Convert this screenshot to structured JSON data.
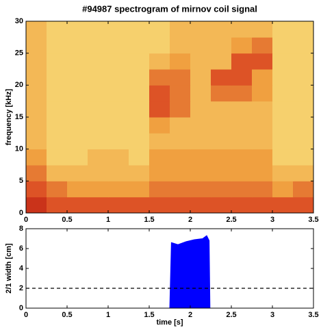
{
  "chart_data": [
    {
      "type": "heatmap",
      "title": "#94987 spectrogram of mirnov coil signal",
      "ylabel": "frequency [kHz]",
      "xlim": [
        0,
        3.5
      ],
      "ylim": [
        0,
        30
      ],
      "xticks": [
        0,
        0.5,
        1,
        1.5,
        2,
        2.5,
        3,
        3.5
      ],
      "yticks": [
        0,
        5,
        10,
        15,
        20,
        25,
        30
      ],
      "xbins": [
        0,
        0.25,
        0.5,
        0.75,
        1,
        1.25,
        1.5,
        1.75,
        2,
        2.25,
        2.5,
        2.75,
        3,
        3.25,
        3.5
      ],
      "ybins": [
        0,
        2.5,
        5,
        7.5,
        10,
        12.5,
        15,
        17.5,
        20,
        22.5,
        25,
        27.5,
        30
      ],
      "zlim": [
        0,
        10
      ],
      "colors": [
        "#fff8d8",
        "#f8dc78",
        "#f0a040",
        "#d84020",
        "#900000"
      ],
      "z": [
        [
          8,
          7,
          7,
          7,
          7,
          7,
          7,
          7,
          7,
          7,
          7,
          7,
          7,
          7
        ],
        [
          7,
          6,
          5,
          5,
          5,
          5,
          6,
          6,
          6,
          6,
          6,
          6,
          5,
          6
        ],
        [
          6,
          4,
          4,
          4,
          4,
          4,
          5,
          5,
          5,
          5,
          5,
          5,
          4,
          4
        ],
        [
          5,
          3,
          3,
          4,
          4,
          3,
          5,
          5,
          5,
          5,
          5,
          5,
          3,
          3
        ],
        [
          4,
          3,
          3,
          3,
          3,
          3,
          4,
          4,
          4,
          4,
          4,
          4,
          3,
          3
        ],
        [
          4,
          3,
          3,
          3,
          3,
          3,
          5,
          4,
          4,
          4,
          4,
          4,
          3,
          3
        ],
        [
          4,
          3,
          3,
          3,
          3,
          3,
          7,
          6,
          4,
          4,
          4,
          4,
          3,
          3
        ],
        [
          4,
          3,
          3,
          3,
          3,
          3,
          7,
          6,
          4,
          6,
          6,
          5,
          3,
          3
        ],
        [
          4,
          3,
          3,
          3,
          3,
          3,
          6,
          6,
          4,
          7,
          7,
          5,
          3,
          3
        ],
        [
          4,
          3,
          3,
          3,
          3,
          3,
          4,
          5,
          4,
          4,
          7,
          7,
          3,
          3
        ],
        [
          4,
          3,
          3,
          3,
          3,
          3,
          3,
          4,
          4,
          4,
          5,
          6,
          3,
          3
        ],
        [
          4,
          3,
          3,
          3,
          3,
          3,
          3,
          4,
          4,
          4,
          4,
          4,
          3,
          3
        ]
      ]
    },
    {
      "type": "area",
      "ylabel": "2/1 width [cm]",
      "xlabel": "time [s]",
      "xlim": [
        0,
        3.5
      ],
      "ylim": [
        0,
        8
      ],
      "xticks": [
        0,
        0.5,
        1,
        1.5,
        2,
        2.5,
        3,
        3.5
      ],
      "yticks": [
        0,
        2,
        4,
        6,
        8
      ],
      "color": "#0000ff",
      "hline": 2,
      "x": [
        1.0,
        1.75,
        1.77,
        1.85,
        1.95,
        2.05,
        2.15,
        2.2,
        2.23,
        2.24,
        3.5
      ],
      "values": [
        0,
        0,
        6.6,
        6.4,
        6.7,
        6.9,
        7.0,
        7.3,
        6.8,
        0,
        0
      ]
    }
  ]
}
